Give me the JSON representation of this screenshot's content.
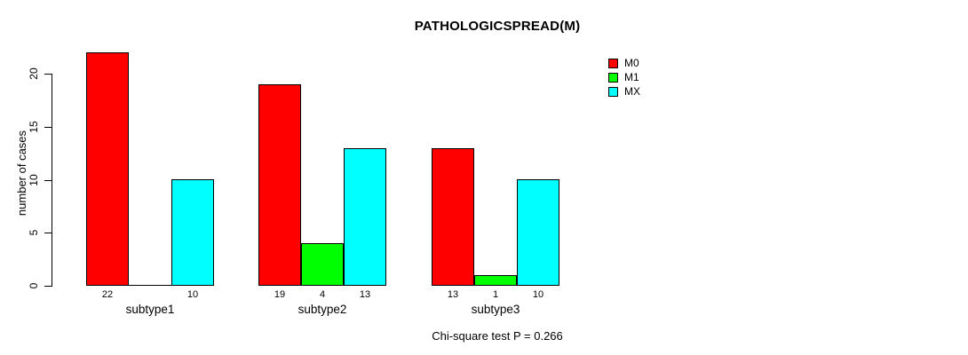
{
  "chart_data": {
    "type": "bar",
    "title": "PATHOLOGICSPREAD(M)",
    "ylabel": "number of cases",
    "xlabel": "",
    "categories": [
      "subtype1",
      "subtype2",
      "subtype3"
    ],
    "series": [
      {
        "name": "M0",
        "color": "#ff0000",
        "values": [
          22,
          19,
          13
        ]
      },
      {
        "name": "M1",
        "color": "#00ff00",
        "values": [
          0,
          4,
          1
        ]
      },
      {
        "name": "MX",
        "color": "#00ffff",
        "values": [
          10,
          13,
          10
        ]
      }
    ],
    "bar_value_labels": [
      [
        "22",
        "",
        "10"
      ],
      [
        "19",
        "4",
        "13"
      ],
      [
        "13",
        "1",
        "10"
      ]
    ],
    "y_ticks": [
      "0",
      "5",
      "10",
      "15",
      "20"
    ],
    "ylim": [
      0,
      22
    ],
    "grid": false,
    "legend_position": "top-right",
    "legend_entries": [
      "M0",
      "M1",
      "MX"
    ],
    "note": "Chi-square test P = 0.266",
    "bar_border_color": "#000000"
  }
}
